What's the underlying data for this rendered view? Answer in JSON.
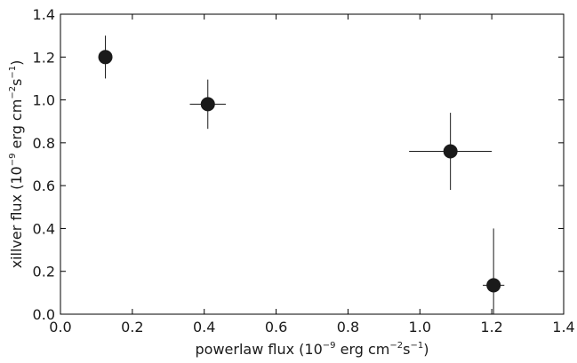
{
  "chart_data": {
    "type": "scatter",
    "xlabel": {
      "prefix": "powerlaw flux (10",
      "exp1": "−9",
      "mid": " erg cm",
      "exp2": "−2",
      "mid2": "s",
      "exp3": "−1",
      "suffix": ")"
    },
    "ylabel": {
      "prefix": "xillver flux (10",
      "exp1": "−9",
      "mid": " erg cm",
      "exp2": "−2",
      "mid2": "s",
      "exp3": "−1",
      "suffix": ")"
    },
    "xlim": [
      0.0,
      1.4
    ],
    "ylim": [
      0.0,
      1.4
    ],
    "xticks": [
      "0.0",
      "0.2",
      "0.4",
      "0.6",
      "0.8",
      "1.0",
      "1.2",
      "1.4"
    ],
    "yticks": [
      "0.0",
      "0.2",
      "0.4",
      "0.6",
      "0.8",
      "1.0",
      "1.2",
      "1.4"
    ],
    "grid": false,
    "points": [
      {
        "x": 0.125,
        "y": 1.2,
        "xerr": [
          0.015,
          0.015
        ],
        "yerr": [
          0.1,
          0.1
        ]
      },
      {
        "x": 0.41,
        "y": 0.98,
        "xerr": [
          0.05,
          0.05
        ],
        "yerr": [
          0.115,
          0.115
        ]
      },
      {
        "x": 1.085,
        "y": 0.76,
        "xerr": [
          0.115,
          0.115
        ],
        "yerr": [
          0.18,
          0.18
        ]
      },
      {
        "x": 1.205,
        "y": 0.135,
        "xerr": [
          0.03,
          0.03
        ],
        "yerr": [
          0.135,
          0.265
        ]
      }
    ],
    "marker_color": "#1a1a1a"
  }
}
